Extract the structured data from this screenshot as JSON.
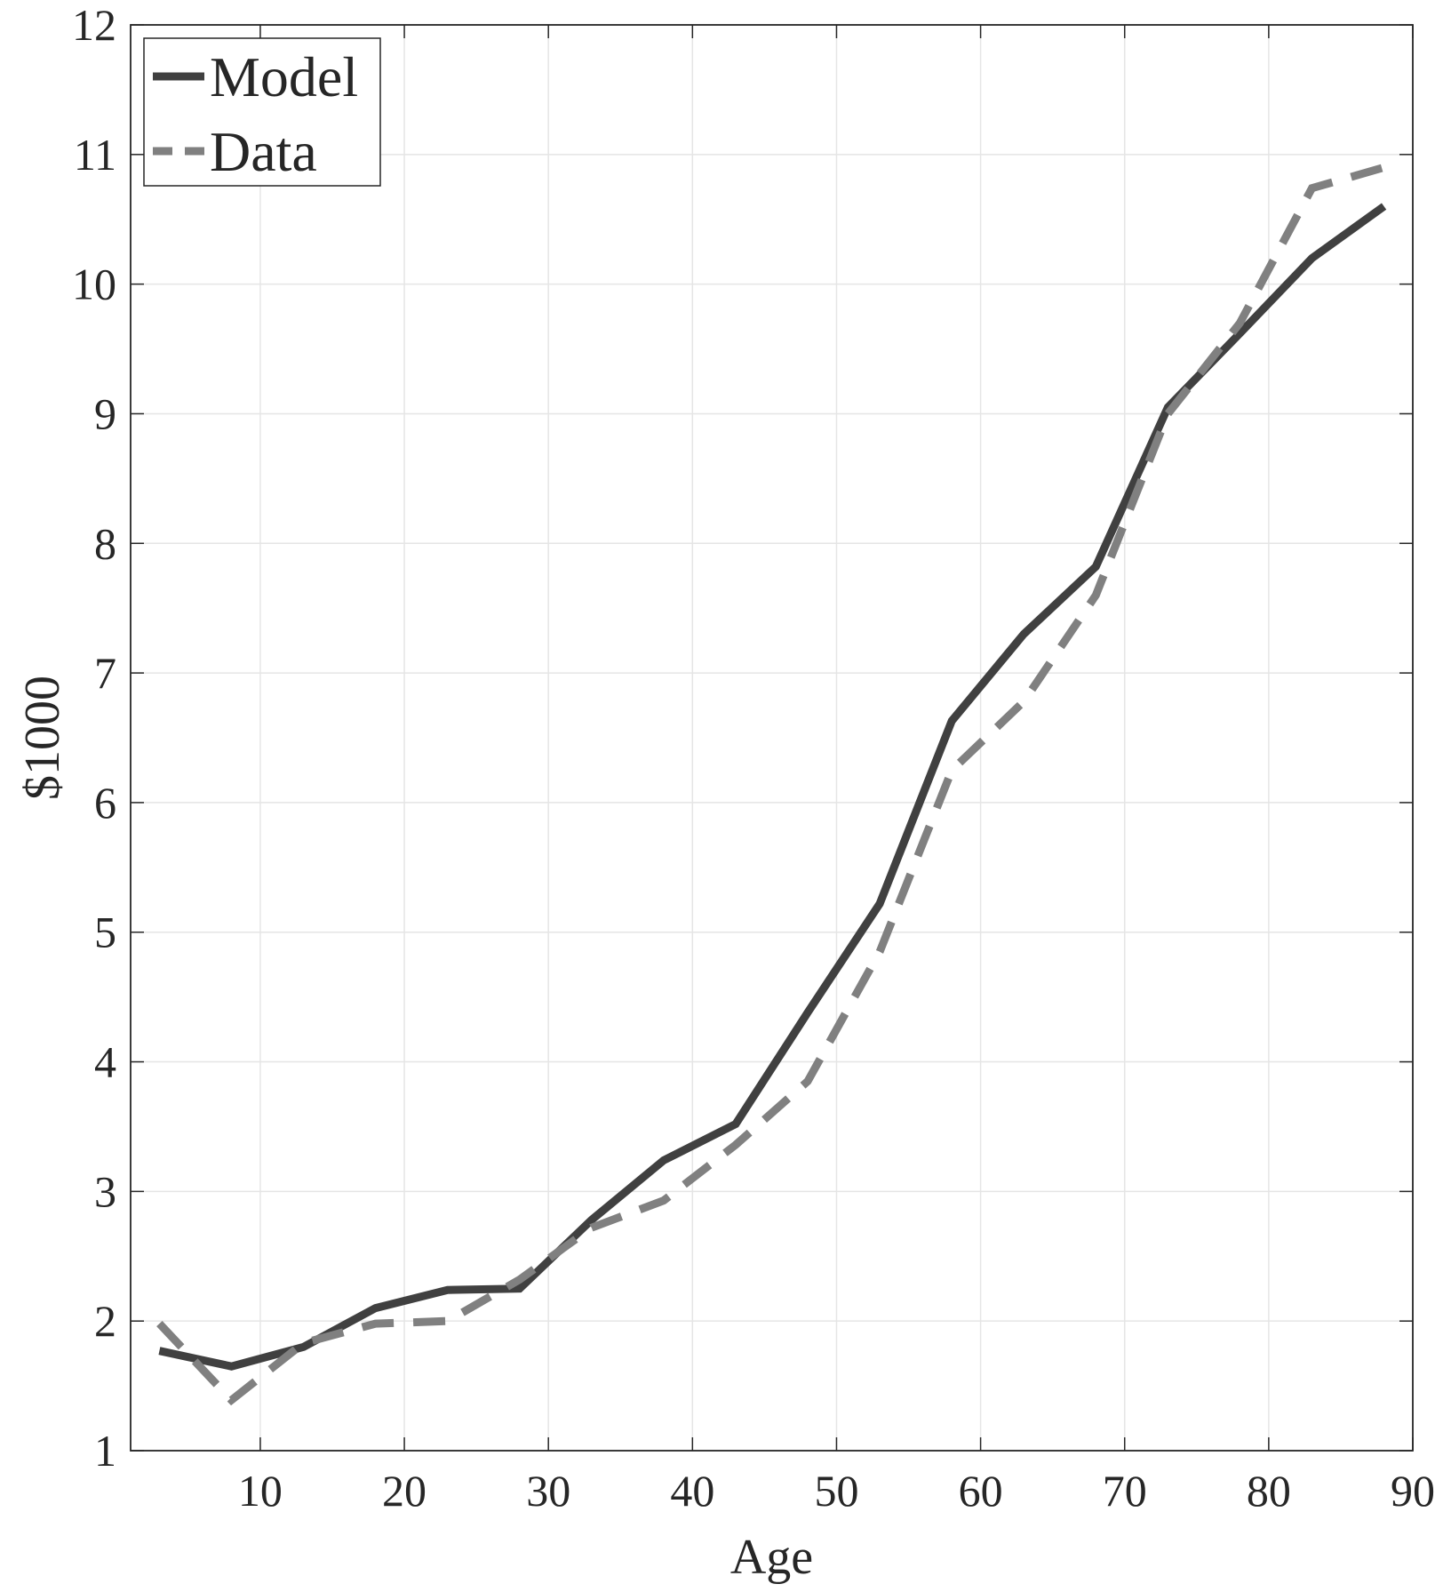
{
  "chart_data": {
    "type": "line",
    "title": "",
    "xlabel": "Age",
    "ylabel": "$1000",
    "xlim": [
      1,
      90
    ],
    "ylim": [
      1,
      12
    ],
    "xticks": [
      10,
      20,
      30,
      40,
      50,
      60,
      70,
      80,
      90
    ],
    "yticks": [
      1,
      2,
      3,
      4,
      5,
      6,
      7,
      8,
      9,
      10,
      11,
      12
    ],
    "grid": true,
    "legend_position": "top-left",
    "x": [
      3,
      8,
      13,
      18,
      23,
      28,
      33,
      38,
      43,
      48,
      53,
      58,
      63,
      68,
      73,
      78,
      83,
      88
    ],
    "series": [
      {
        "name": "Model",
        "style": "solid",
        "color": "#404040",
        "values": [
          1.77,
          1.65,
          1.8,
          2.1,
          2.24,
          2.25,
          2.78,
          3.24,
          3.52,
          4.38,
          5.22,
          6.63,
          7.3,
          7.82,
          9.05,
          9.62,
          10.2,
          10.6
        ]
      },
      {
        "name": "Data",
        "style": "dashed",
        "color": "#808080",
        "values": [
          1.98,
          1.39,
          1.83,
          1.98,
          2.0,
          2.32,
          2.72,
          2.93,
          3.36,
          3.85,
          4.85,
          6.25,
          6.78,
          7.6,
          9.0,
          9.7,
          10.74,
          10.9
        ]
      }
    ]
  }
}
